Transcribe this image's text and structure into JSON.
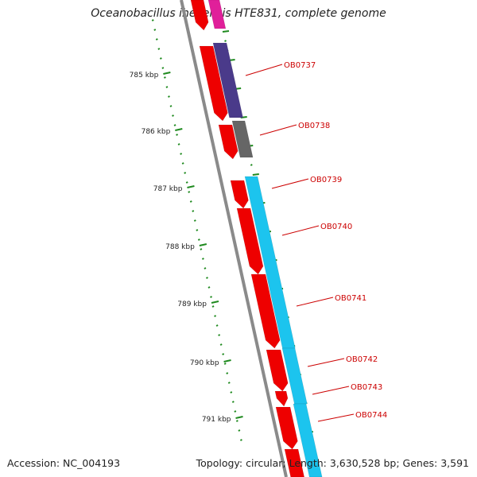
{
  "title": "Oceanobacillus iheyensis HTE831, complete genome",
  "footer": {
    "accession": "Accession: NC_004193",
    "summary": "Topology: circular; Length: 3,630,528 bp; Genes: 3,591"
  },
  "scale_labels": [
    "785 kbp",
    "786 kbp",
    "787 kbp",
    "788 kbp",
    "789 kbp",
    "790 kbp",
    "791 kbp"
  ],
  "gene_labels": [
    "OB0737",
    "OB0738",
    "OB0739",
    "OB0740",
    "OB0741",
    "OB0742",
    "OB0743",
    "OB0744"
  ],
  "colors": {
    "cds_red": "#ee0000",
    "purple": "#4a3a8a",
    "gray": "#666666",
    "cyan": "#1cc4ee",
    "magenta": "#e0209a",
    "tick_green": "#1f8a1f",
    "label_red": "#cc0000",
    "backbone": "#8a8a8a"
  }
}
